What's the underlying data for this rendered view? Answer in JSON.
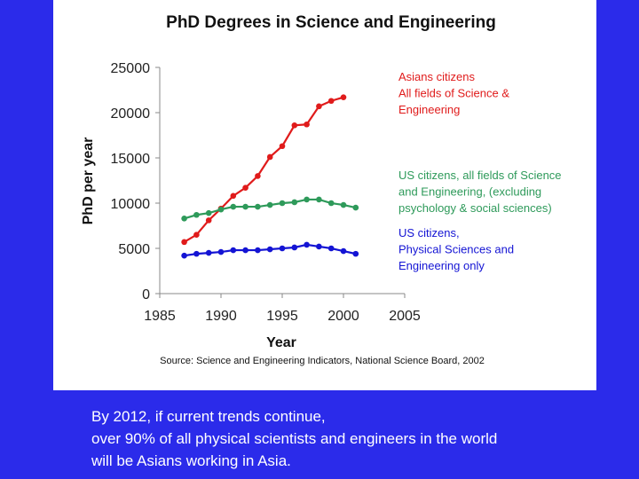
{
  "chart_data": {
    "type": "line",
    "title": "PhD Degrees in Science and Engineering",
    "xlabel": "Year",
    "ylabel": "PhD per year",
    "xlim": [
      1985,
      2005
    ],
    "ylim": [
      0,
      25000
    ],
    "x_ticks": [
      "1985",
      "1990",
      "1995",
      "2000",
      "2005"
    ],
    "y_ticks": [
      "0",
      "5000",
      "10000",
      "15000",
      "20000",
      "25000"
    ],
    "source": "Source: Science and Engineering Indicators, National Science Board, 2002",
    "grid": false,
    "legend_placement": "right",
    "series": [
      {
        "name": "Asians citizens All fields of Science & Engineering",
        "legend_lines": [
          "Asians citizens",
          "All fields of Science &",
          "Engineering"
        ],
        "color": "#e01b1b",
        "x": [
          1987,
          1988,
          1989,
          1990,
          1991,
          1992,
          1993,
          1994,
          1995,
          1996,
          1997,
          1998,
          1999,
          2000
        ],
        "y": [
          5700,
          6500,
          8100,
          9400,
          10800,
          11700,
          13000,
          15100,
          16300,
          18600,
          18700,
          20700,
          21300,
          21700
        ]
      },
      {
        "name": "US citizens, all fields of Science and Engineering, (excluding psychology & social sciences)",
        "legend_lines": [
          "US citizens, all fields of Science",
          "and Engineering, (excluding",
          "psychology & social sciences)"
        ],
        "color": "#2e9a5a",
        "x": [
          1987,
          1988,
          1989,
          1990,
          1991,
          1992,
          1993,
          1994,
          1995,
          1996,
          1997,
          1998,
          1999,
          2000,
          2001
        ],
        "y": [
          8300,
          8700,
          8900,
          9300,
          9600,
          9600,
          9600,
          9800,
          10000,
          10100,
          10400,
          10400,
          10000,
          9800,
          9500
        ]
      },
      {
        "name": "US citizens, Physical Sciences and Engineering only",
        "legend_lines": [
          "US citizens,",
          "Physical Sciences and",
          "Engineering only"
        ],
        "color": "#1414d4",
        "x": [
          1987,
          1988,
          1989,
          1990,
          1991,
          1992,
          1993,
          1994,
          1995,
          1996,
          1997,
          1998,
          1999,
          2000,
          2001
        ],
        "y": [
          4200,
          4400,
          4500,
          4600,
          4800,
          4800,
          4800,
          4900,
          5000,
          5100,
          5400,
          5200,
          5000,
          4700,
          4400
        ]
      }
    ]
  },
  "caption": {
    "lines": [
      "By 2012, if current trends continue,",
      "over 90% of all physical scientists and engineers in the world",
      "will be Asians working in Asia."
    ]
  }
}
